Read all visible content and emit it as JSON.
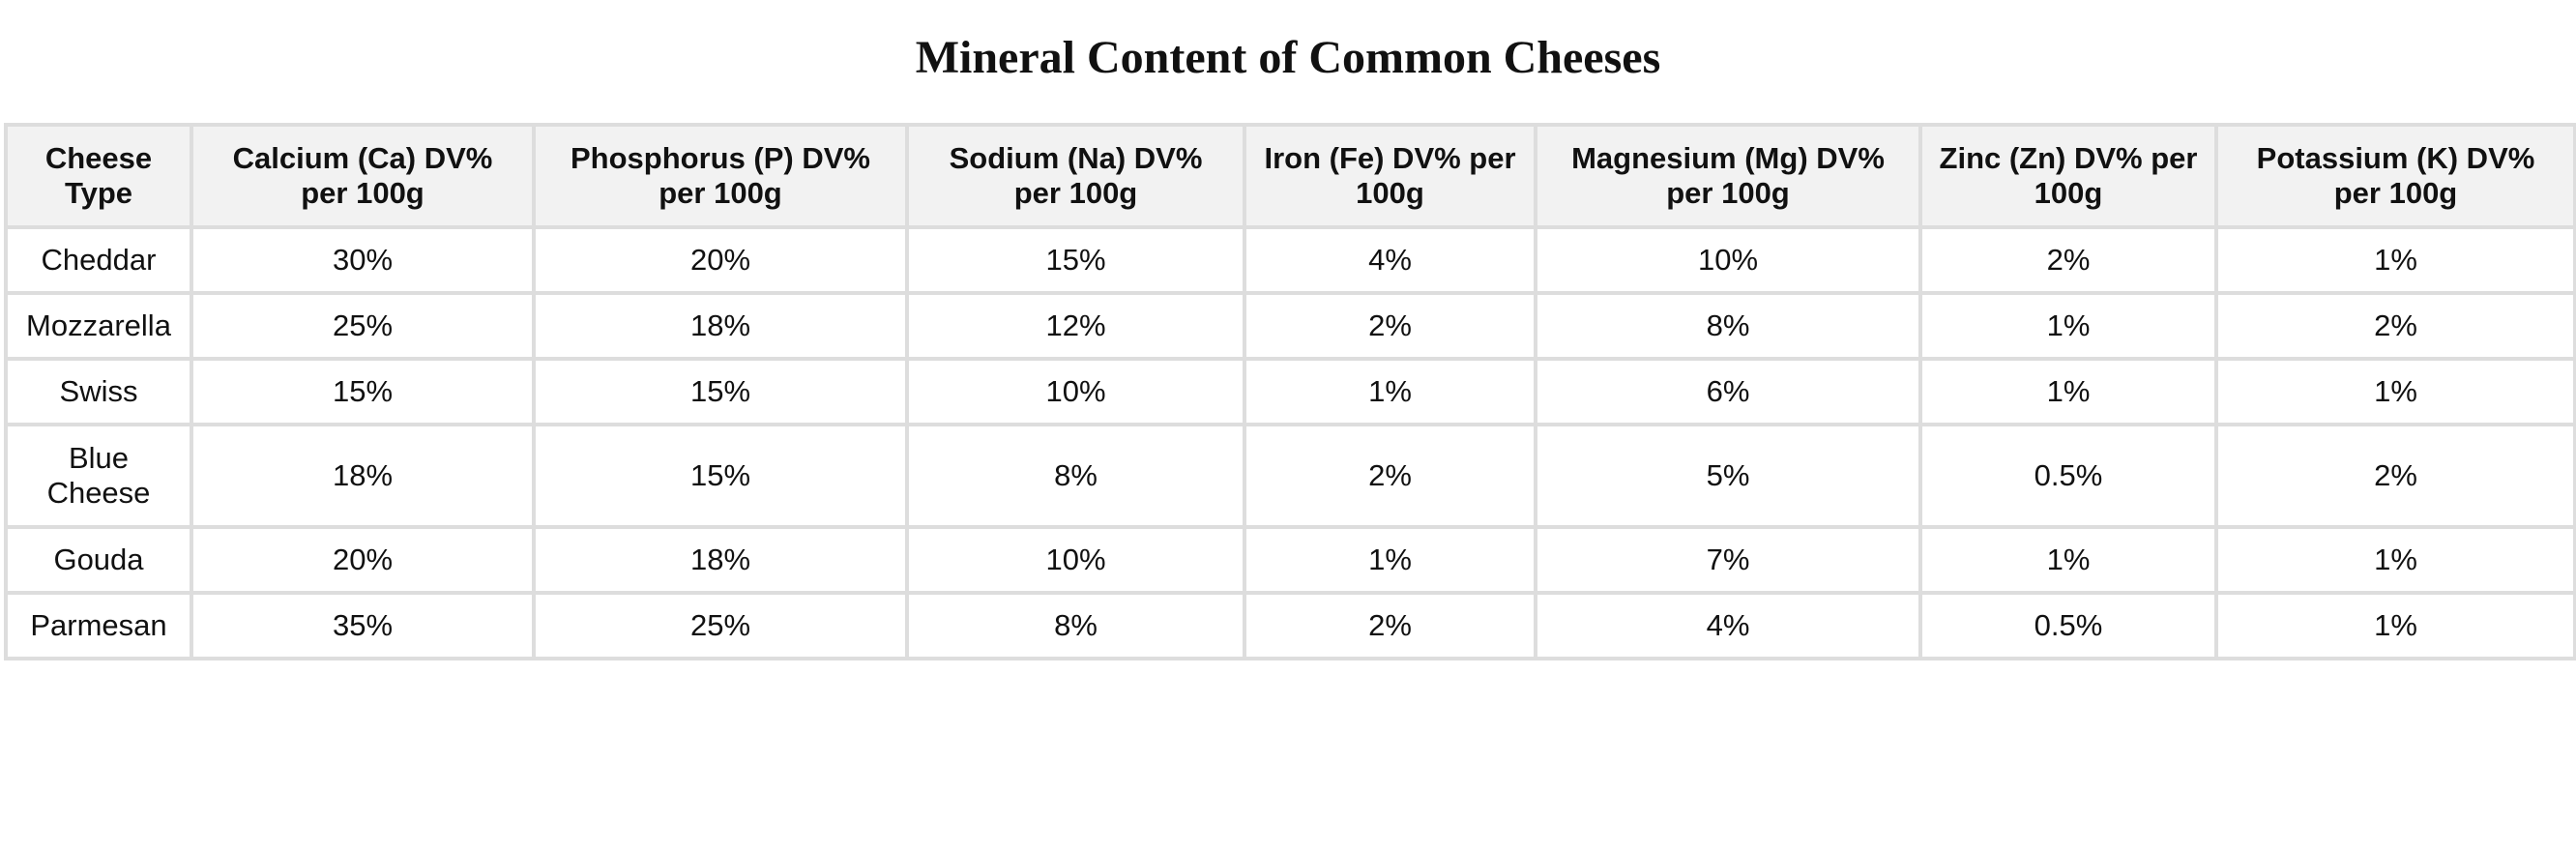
{
  "title": "Mineral Content of Common Cheeses",
  "table": {
    "headers": [
      "Cheese Type",
      "Calcium (Ca) DV% per 100g",
      "Phosphorus (P) DV% per 100g",
      "Sodium (Na) DV% per 100g",
      "Iron (Fe) DV% per 100g",
      "Magnesium (Mg) DV% per 100g",
      "Zinc (Zn) DV% per 100g",
      "Potassium (K) DV% per 100g"
    ],
    "rows": [
      [
        "Cheddar",
        "30%",
        "20%",
        "15%",
        "4%",
        "10%",
        "2%",
        "1%"
      ],
      [
        "Mozzarella",
        "25%",
        "18%",
        "12%",
        "2%",
        "8%",
        "1%",
        "2%"
      ],
      [
        "Swiss",
        "15%",
        "15%",
        "10%",
        "1%",
        "6%",
        "1%",
        "1%"
      ],
      [
        "Blue Cheese",
        "18%",
        "15%",
        "8%",
        "2%",
        "5%",
        "0.5%",
        "2%"
      ],
      [
        "Gouda",
        "20%",
        "18%",
        "10%",
        "1%",
        "7%",
        "1%",
        "1%"
      ],
      [
        "Parmesan",
        "35%",
        "25%",
        "8%",
        "2%",
        "4%",
        "0.5%",
        "1%"
      ]
    ]
  }
}
